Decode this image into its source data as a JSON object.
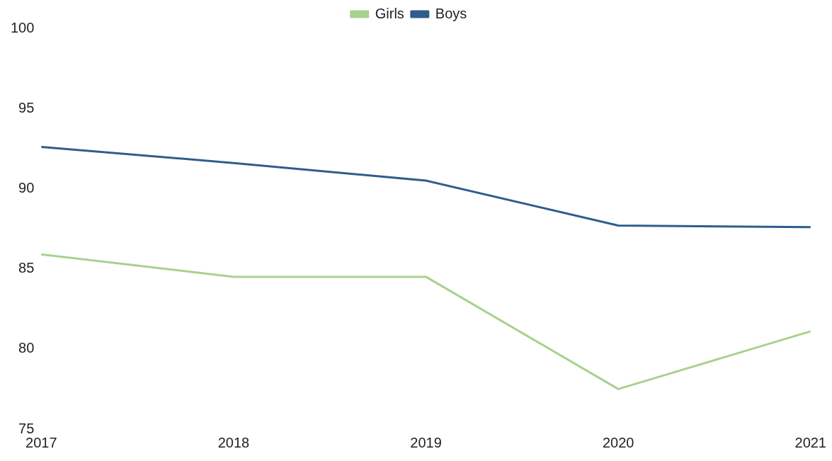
{
  "chart_data": {
    "type": "line",
    "categories": [
      "2017",
      "2018",
      "2019",
      "2020",
      "2021"
    ],
    "series": [
      {
        "name": "Girls",
        "color": "#a9d18e",
        "values": [
          85.9,
          84.5,
          84.5,
          77.5,
          81.1
        ]
      },
      {
        "name": "Boys",
        "color": "#2f5d8c",
        "values": [
          92.6,
          91.6,
          90.5,
          87.7,
          87.6
        ]
      }
    ],
    "ylim": [
      75,
      100
    ],
    "yticks": [
      75,
      80,
      85,
      90,
      95,
      100
    ],
    "grid": false,
    "legend": "top",
    "marker": "none"
  }
}
